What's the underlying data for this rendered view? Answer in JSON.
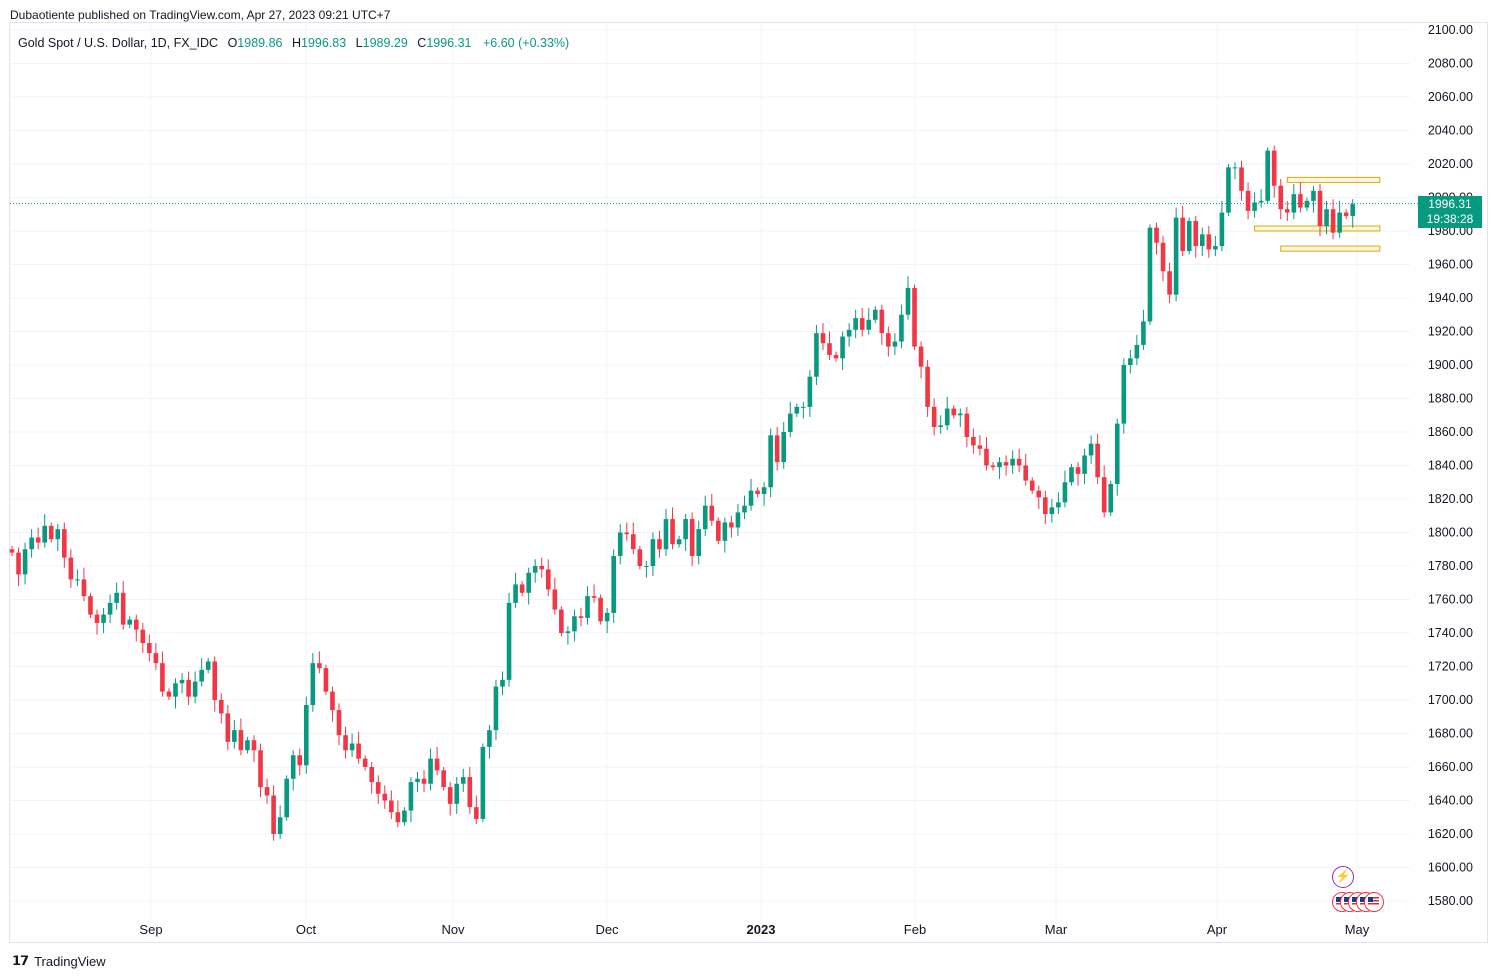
{
  "header": {
    "published": "Dubaotiente published on TradingView.com, Apr 27, 2023 09:21 UTC+7"
  },
  "legend": {
    "symbol": "Gold Spot / U.S. Dollar, 1D, FX_IDC",
    "o_label": "O",
    "o_value": "1989.86",
    "h_label": "H",
    "h_value": "1996.83",
    "l_label": "L",
    "l_value": "1989.29",
    "c_label": "C",
    "c_value": "1996.31",
    "change": "+6.60 (+0.33%)"
  },
  "price_tag": {
    "price": "1996.31",
    "countdown": "19:38:28"
  },
  "footer": {
    "brand": "TradingView"
  },
  "colors": {
    "up": "#089981",
    "down": "#f23645",
    "zone": "#e0a800",
    "grid": "#f0f3fa",
    "event": "#9c27b0"
  },
  "icons": {
    "event": "lightning-icon",
    "flag": "us-flag-icon",
    "logo": "tradingview-logo-icon"
  },
  "chart_data": {
    "type": "candlestick",
    "title": "Gold Spot / U.S. Dollar, 1D, FX_IDC",
    "y_axis": {
      "min": 1570,
      "max": 2100,
      "ticks": [
        "2100.00",
        "2080.00",
        "2060.00",
        "2040.00",
        "2020.00",
        "2000.00",
        "1980.00",
        "1960.00",
        "1940.00",
        "1920.00",
        "1900.00",
        "1880.00",
        "1860.00",
        "1840.00",
        "1820.00",
        "1800.00",
        "1780.00",
        "1760.00",
        "1740.00",
        "1720.00",
        "1700.00",
        "1680.00",
        "1660.00",
        "1640.00",
        "1620.00",
        "1600.00",
        "1580.00"
      ]
    },
    "x_axis_labels": [
      "Sep",
      "Oct",
      "Nov",
      "Dec",
      "2023",
      "Feb",
      "Mar",
      "Apr",
      "May"
    ],
    "grid": true,
    "last_price": 1996.31,
    "series": {
      "open": [
        1790,
        1788,
        1775,
        1790,
        1797,
        1794,
        1804,
        1796,
        1802,
        1785,
        1772,
        1772,
        1762,
        1751,
        1746,
        1751,
        1758,
        1764,
        1745,
        1748,
        1742,
        1734,
        1728,
        1722,
        1705,
        1702,
        1710,
        1712,
        1702,
        1711,
        1718,
        1723,
        1700,
        1692,
        1675,
        1682,
        1670,
        1676,
        1670,
        1648,
        1643,
        1620,
        1630,
        1653,
        1667,
        1661,
        1697,
        1722,
        1719,
        1705,
        1694,
        1679,
        1670,
        1674,
        1665,
        1660,
        1651,
        1644,
        1640,
        1633,
        1627,
        1634,
        1651,
        1653,
        1650,
        1665,
        1658,
        1648,
        1638,
        1650,
        1654,
        1636,
        1629,
        1672,
        1682,
        1708,
        1712,
        1758,
        1769,
        1764,
        1776,
        1780,
        1778,
        1766,
        1754,
        1740,
        1741,
        1750,
        1749,
        1762,
        1761,
        1747,
        1752,
        1786,
        1800,
        1799,
        1790,
        1780,
        1780,
        1796,
        1790,
        1808,
        1793,
        1796,
        1808,
        1786,
        1802,
        1816,
        1807,
        1795,
        1806,
        1803,
        1812,
        1816,
        1825,
        1823,
        1827,
        1858,
        1842,
        1860,
        1871,
        1875,
        1875,
        1893,
        1919,
        1913,
        1906,
        1904,
        1917,
        1921,
        1928,
        1921,
        1927,
        1933,
        1919,
        1911,
        1914,
        1930,
        1946,
        1911,
        1899,
        1875,
        1863,
        1864,
        1874,
        1870,
        1871,
        1857,
        1852,
        1850,
        1840,
        1839,
        1842,
        1840,
        1844,
        1840,
        1831,
        1825,
        1821,
        1811,
        1815,
        1818,
        1830,
        1839,
        1835,
        1846,
        1853,
        1833,
        1812,
        1829,
        1865,
        1900,
        1904,
        1912,
        1926,
        1982,
        1973,
        1956,
        1942,
        1988,
        1968,
        1986,
        1971,
        1978,
        1969,
        1971,
        1991,
        2018,
        2018,
        2004,
        1992,
        1997,
        1998,
        2028,
        2007,
        1993,
        1991,
        2002,
        1994,
        1998,
        2004,
        1983,
        1993,
        1979,
        1991,
        1989
      ],
      "close": [
        1788,
        1775,
        1790,
        1797,
        1794,
        1804,
        1796,
        1802,
        1785,
        1772,
        1772,
        1762,
        1751,
        1746,
        1751,
        1758,
        1764,
        1745,
        1748,
        1742,
        1734,
        1728,
        1722,
        1705,
        1702,
        1710,
        1712,
        1702,
        1711,
        1718,
        1723,
        1700,
        1692,
        1675,
        1682,
        1670,
        1676,
        1670,
        1648,
        1643,
        1620,
        1630,
        1653,
        1667,
        1661,
        1697,
        1722,
        1719,
        1705,
        1694,
        1679,
        1670,
        1674,
        1665,
        1660,
        1651,
        1644,
        1640,
        1633,
        1627,
        1634,
        1651,
        1653,
        1650,
        1665,
        1658,
        1648,
        1638,
        1650,
        1654,
        1636,
        1629,
        1672,
        1682,
        1708,
        1712,
        1758,
        1769,
        1764,
        1776,
        1780,
        1778,
        1766,
        1754,
        1740,
        1741,
        1750,
        1749,
        1762,
        1761,
        1747,
        1752,
        1786,
        1800,
        1799,
        1790,
        1780,
        1780,
        1796,
        1790,
        1808,
        1793,
        1796,
        1808,
        1786,
        1802,
        1816,
        1807,
        1795,
        1806,
        1803,
        1812,
        1816,
        1825,
        1823,
        1827,
        1858,
        1842,
        1860,
        1871,
        1875,
        1875,
        1893,
        1919,
        1913,
        1906,
        1904,
        1917,
        1921,
        1928,
        1921,
        1927,
        1933,
        1919,
        1911,
        1914,
        1930,
        1946,
        1911,
        1899,
        1875,
        1863,
        1864,
        1874,
        1870,
        1871,
        1857,
        1852,
        1850,
        1840,
        1839,
        1842,
        1840,
        1844,
        1840,
        1831,
        1825,
        1821,
        1811,
        1815,
        1818,
        1830,
        1839,
        1835,
        1846,
        1853,
        1833,
        1812,
        1829,
        1865,
        1900,
        1904,
        1912,
        1926,
        1982,
        1973,
        1956,
        1942,
        1988,
        1968,
        1986,
        1971,
        1978,
        1969,
        1971,
        1991,
        2018,
        2018,
        2004,
        1992,
        1997,
        1998,
        2028,
        2007,
        1993,
        1991,
        2002,
        1994,
        1998,
        2004,
        1983,
        1993,
        1979,
        1991,
        1989,
        1996
      ]
    },
    "annotations": [
      {
        "type": "zone",
        "x_start_index": 195,
        "x_end_index": 207,
        "low": 2009,
        "high": 2012
      },
      {
        "type": "zone",
        "x_start_index": 190,
        "x_end_index": 207,
        "low": 1980,
        "high": 1983
      },
      {
        "type": "zone",
        "x_start_index": 194,
        "x_end_index": 207,
        "low": 1968,
        "high": 1971
      }
    ]
  }
}
